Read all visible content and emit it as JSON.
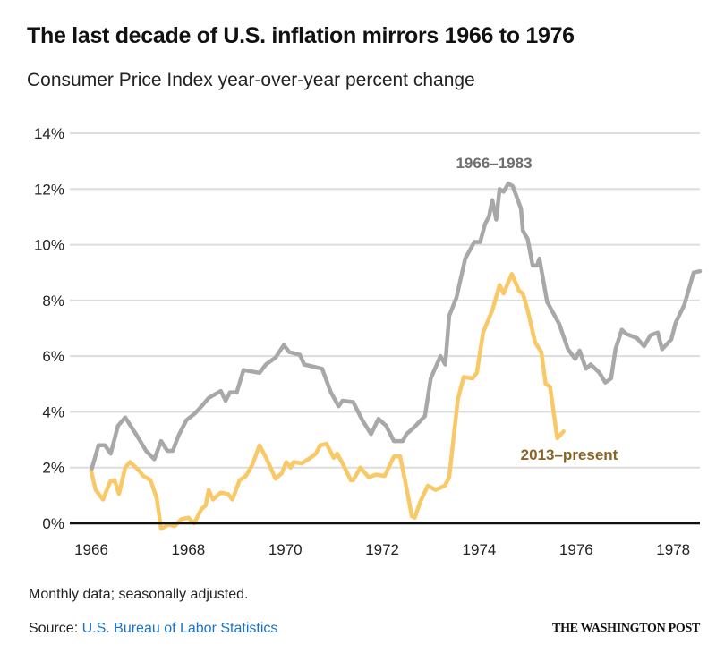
{
  "title": "The last decade of U.S. inflation mirrors 1966 to 1976",
  "subtitle": "Consumer Price Index year-over-year percent change",
  "footnote": "Monthly data; seasonally adjusted.",
  "source": {
    "label": "Source:",
    "link_text": "U.S. Bureau of Labor Statistics"
  },
  "brand": "THE WASHINGTON POST",
  "chart_data": {
    "type": "line",
    "xlim": [
      1966,
      1978.55
    ],
    "ylim": [
      0,
      14
    ],
    "grid": true,
    "x_ticks": [
      1966,
      1968,
      1970,
      1972,
      1974,
      1976,
      1978
    ],
    "x_tick_labels": [
      "1966",
      "1968",
      "1970",
      "1972",
      "1974",
      "1976",
      "1978"
    ],
    "y_ticks": [
      0,
      2,
      4,
      6,
      8,
      10,
      12,
      14
    ],
    "y_tick_labels": [
      "0%",
      "2%",
      "4%",
      "6%",
      "8%",
      "10%",
      "12%",
      "14%"
    ],
    "colors": {
      "1966–1983": "#a8a8a8",
      "2013–present": "#f8c966",
      "label_1966": "#6e6e6e",
      "label_2013": "#8a6424",
      "axis": "#111111",
      "grid": "#dddddd"
    },
    "series": [
      {
        "name": "1966–1983",
        "points": [
          [
            1966.0,
            1.9
          ],
          [
            1966.15,
            2.8
          ],
          [
            1966.28,
            2.8
          ],
          [
            1966.4,
            2.5
          ],
          [
            1966.55,
            3.5
          ],
          [
            1966.7,
            3.8
          ],
          [
            1966.94,
            3.15
          ],
          [
            1967.13,
            2.6
          ],
          [
            1967.3,
            2.3
          ],
          [
            1967.44,
            2.95
          ],
          [
            1967.57,
            2.6
          ],
          [
            1967.68,
            2.6
          ],
          [
            1967.8,
            3.15
          ],
          [
            1967.96,
            3.7
          ],
          [
            1968.14,
            3.95
          ],
          [
            1968.3,
            4.25
          ],
          [
            1968.42,
            4.5
          ],
          [
            1968.67,
            4.75
          ],
          [
            1968.77,
            4.4
          ],
          [
            1968.86,
            4.7
          ],
          [
            1969.0,
            4.7
          ],
          [
            1969.14,
            5.5
          ],
          [
            1969.47,
            5.4
          ],
          [
            1969.6,
            5.7
          ],
          [
            1969.8,
            5.95
          ],
          [
            1969.97,
            6.4
          ],
          [
            1970.08,
            6.15
          ],
          [
            1970.3,
            6.05
          ],
          [
            1970.39,
            5.7
          ],
          [
            1970.76,
            5.55
          ],
          [
            1970.94,
            4.7
          ],
          [
            1971.1,
            4.2
          ],
          [
            1971.18,
            4.4
          ],
          [
            1971.4,
            4.35
          ],
          [
            1971.59,
            3.7
          ],
          [
            1971.77,
            3.2
          ],
          [
            1971.92,
            3.75
          ],
          [
            1972.08,
            3.5
          ],
          [
            1972.24,
            2.95
          ],
          [
            1972.42,
            2.95
          ],
          [
            1972.5,
            3.2
          ],
          [
            1972.66,
            3.45
          ],
          [
            1972.88,
            3.85
          ],
          [
            1973.0,
            5.2
          ],
          [
            1973.2,
            6.0
          ],
          [
            1973.3,
            5.7
          ],
          [
            1973.38,
            7.45
          ],
          [
            1973.53,
            8.1
          ],
          [
            1973.71,
            9.5
          ],
          [
            1973.9,
            10.1
          ],
          [
            1974.02,
            10.1
          ],
          [
            1974.12,
            10.75
          ],
          [
            1974.2,
            11.0
          ],
          [
            1974.27,
            11.6
          ],
          [
            1974.35,
            10.9
          ],
          [
            1974.42,
            12.0
          ],
          [
            1974.5,
            11.9
          ],
          [
            1974.6,
            12.2
          ],
          [
            1974.69,
            12.1
          ],
          [
            1974.86,
            11.3
          ],
          [
            1974.9,
            10.5
          ],
          [
            1975.0,
            10.2
          ],
          [
            1975.1,
            9.25
          ],
          [
            1975.19,
            9.25
          ],
          [
            1975.24,
            9.5
          ],
          [
            1975.4,
            7.95
          ],
          [
            1975.65,
            7.15
          ],
          [
            1975.83,
            6.25
          ],
          [
            1975.98,
            5.9
          ],
          [
            1976.07,
            6.2
          ],
          [
            1976.2,
            5.55
          ],
          [
            1976.3,
            5.7
          ],
          [
            1976.48,
            5.4
          ],
          [
            1976.6,
            5.05
          ],
          [
            1976.72,
            5.2
          ],
          [
            1976.81,
            6.25
          ],
          [
            1976.94,
            6.95
          ],
          [
            1977.03,
            6.8
          ],
          [
            1977.25,
            6.65
          ],
          [
            1977.4,
            6.35
          ],
          [
            1977.53,
            6.75
          ],
          [
            1977.68,
            6.85
          ],
          [
            1977.77,
            6.25
          ],
          [
            1977.96,
            6.6
          ],
          [
            1978.05,
            7.2
          ],
          [
            1978.23,
            7.85
          ],
          [
            1978.42,
            9.0
          ],
          [
            1978.55,
            9.05
          ]
        ]
      },
      {
        "name": "2013–present",
        "points": [
          [
            1966.0,
            1.85
          ],
          [
            1966.09,
            1.2
          ],
          [
            1966.24,
            0.85
          ],
          [
            1966.39,
            1.5
          ],
          [
            1966.48,
            1.55
          ],
          [
            1966.57,
            1.05
          ],
          [
            1966.7,
            2.0
          ],
          [
            1966.8,
            2.2
          ],
          [
            1966.98,
            1.9
          ],
          [
            1967.07,
            1.7
          ],
          [
            1967.22,
            1.55
          ],
          [
            1967.35,
            0.9
          ],
          [
            1967.44,
            -0.2
          ],
          [
            1967.59,
            -0.05
          ],
          [
            1967.72,
            -0.1
          ],
          [
            1967.86,
            0.15
          ],
          [
            1968.0,
            0.2
          ],
          [
            1968.12,
            0.0
          ],
          [
            1968.27,
            0.5
          ],
          [
            1968.36,
            0.65
          ],
          [
            1968.42,
            1.2
          ],
          [
            1968.51,
            0.85
          ],
          [
            1968.67,
            1.1
          ],
          [
            1968.82,
            1.05
          ],
          [
            1968.91,
            0.85
          ],
          [
            1969.06,
            1.55
          ],
          [
            1969.19,
            1.7
          ],
          [
            1969.32,
            2.1
          ],
          [
            1969.47,
            2.8
          ],
          [
            1969.62,
            2.3
          ],
          [
            1969.8,
            1.6
          ],
          [
            1969.93,
            1.8
          ],
          [
            1970.02,
            2.2
          ],
          [
            1970.11,
            2.0
          ],
          [
            1970.17,
            2.2
          ],
          [
            1970.34,
            2.15
          ],
          [
            1970.52,
            2.35
          ],
          [
            1970.63,
            2.5
          ],
          [
            1970.72,
            2.8
          ],
          [
            1970.85,
            2.85
          ],
          [
            1971.0,
            2.35
          ],
          [
            1971.07,
            2.5
          ],
          [
            1971.18,
            2.15
          ],
          [
            1971.35,
            1.55
          ],
          [
            1971.4,
            1.55
          ],
          [
            1971.55,
            2.0
          ],
          [
            1971.72,
            1.65
          ],
          [
            1971.87,
            1.75
          ],
          [
            1972.05,
            1.7
          ],
          [
            1972.24,
            2.4
          ],
          [
            1972.37,
            2.4
          ],
          [
            1972.48,
            1.45
          ],
          [
            1972.61,
            0.25
          ],
          [
            1972.67,
            0.2
          ],
          [
            1972.79,
            0.8
          ],
          [
            1972.94,
            1.35
          ],
          [
            1973.1,
            1.2
          ],
          [
            1973.29,
            1.35
          ],
          [
            1973.38,
            1.65
          ],
          [
            1973.47,
            3.05
          ],
          [
            1973.56,
            4.45
          ],
          [
            1973.68,
            5.25
          ],
          [
            1973.86,
            5.2
          ],
          [
            1973.95,
            5.4
          ],
          [
            1974.08,
            6.85
          ],
          [
            1974.27,
            7.65
          ],
          [
            1974.42,
            8.55
          ],
          [
            1974.5,
            8.25
          ],
          [
            1974.67,
            8.95
          ],
          [
            1974.82,
            8.35
          ],
          [
            1974.9,
            8.25
          ],
          [
            1975.0,
            7.65
          ],
          [
            1975.15,
            6.5
          ],
          [
            1975.28,
            6.15
          ],
          [
            1975.37,
            5.0
          ],
          [
            1975.46,
            4.9
          ],
          [
            1975.61,
            3.05
          ],
          [
            1975.74,
            3.3
          ]
        ]
      }
    ],
    "annotations": [
      "1966–1983",
      "2013–present"
    ]
  }
}
